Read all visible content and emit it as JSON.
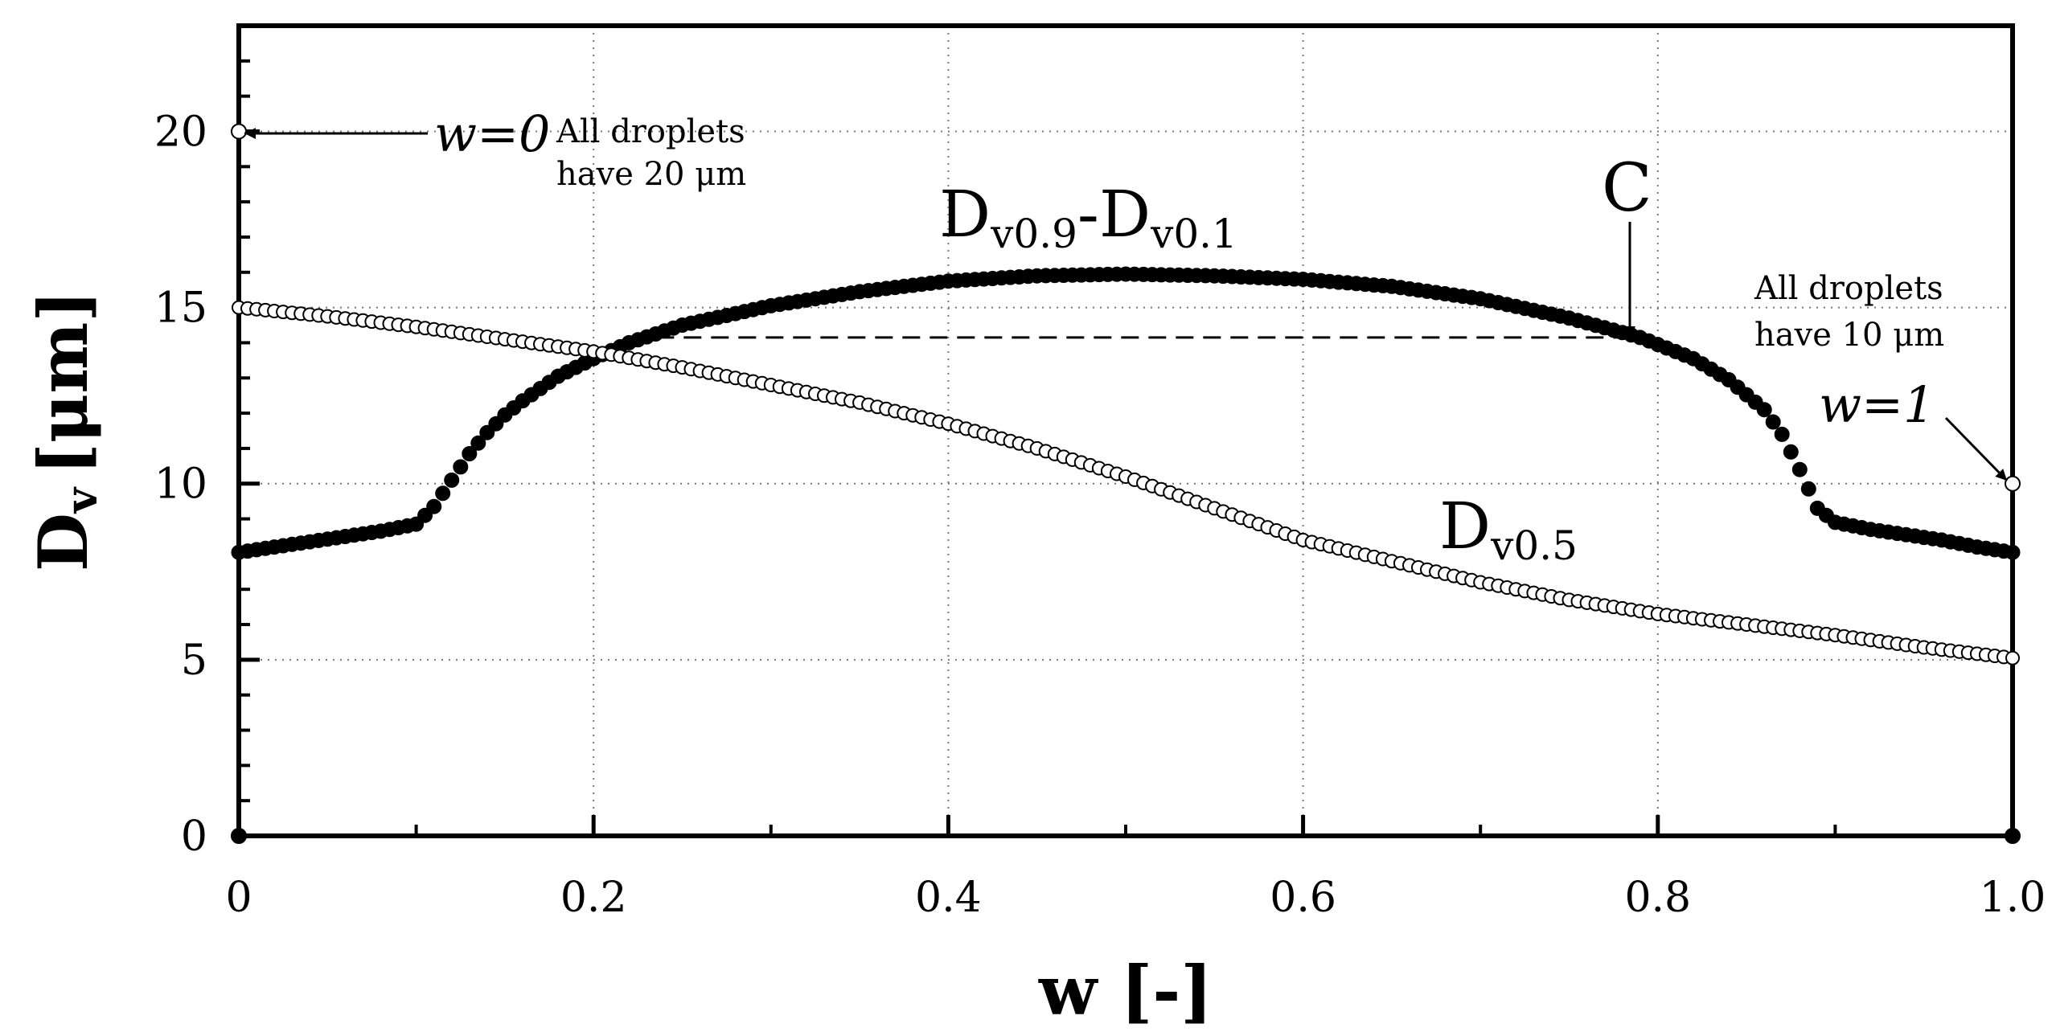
{
  "chart_data": {
    "type": "scatter",
    "xlabel": "w [-]",
    "ylabel_main": "D",
    "ylabel_sub": "v",
    "ylabel_unit": "[μm]",
    "xlim": [
      0,
      1
    ],
    "ylim": [
      0,
      23
    ],
    "x_ticks": [
      0,
      0.2,
      0.4,
      0.6,
      0.8,
      1.0
    ],
    "x_tick_labels": [
      "0",
      "0.2",
      "0.4",
      "0.6",
      "0.8",
      "1.0"
    ],
    "y_ticks": [
      0,
      5,
      10,
      15,
      20
    ],
    "y_tick_labels": [
      "0",
      "5",
      "10",
      "15",
      "20"
    ],
    "grid": "dotted",
    "series": [
      {
        "name": "Dv0.9-Dv0.1",
        "marker": "filled-circle",
        "label_main": "D",
        "label_sub1": "v0.9",
        "label_mid": "-D",
        "label_sub2": "v0.1",
        "points": [
          [
            0.0,
            8.05
          ],
          [
            0.02,
            8.2
          ],
          [
            0.04,
            8.35
          ],
          [
            0.06,
            8.5
          ],
          [
            0.08,
            8.65
          ],
          [
            0.1,
            8.85
          ],
          [
            0.11,
            9.35
          ],
          [
            0.12,
            10.1
          ],
          [
            0.13,
            10.85
          ],
          [
            0.14,
            11.45
          ],
          [
            0.15,
            11.95
          ],
          [
            0.16,
            12.35
          ],
          [
            0.18,
            13.05
          ],
          [
            0.2,
            13.55
          ],
          [
            0.22,
            14.0
          ],
          [
            0.25,
            14.5
          ],
          [
            0.3,
            15.05
          ],
          [
            0.35,
            15.45
          ],
          [
            0.4,
            15.75
          ],
          [
            0.45,
            15.9
          ],
          [
            0.5,
            15.95
          ],
          [
            0.55,
            15.9
          ],
          [
            0.6,
            15.8
          ],
          [
            0.65,
            15.6
          ],
          [
            0.7,
            15.25
          ],
          [
            0.75,
            14.7
          ],
          [
            0.79,
            14.15
          ],
          [
            0.82,
            13.55
          ],
          [
            0.84,
            12.95
          ],
          [
            0.86,
            12.1
          ],
          [
            0.87,
            11.4
          ],
          [
            0.88,
            10.4
          ],
          [
            0.89,
            9.3
          ],
          [
            0.9,
            8.9
          ],
          [
            0.92,
            8.7
          ],
          [
            0.94,
            8.55
          ],
          [
            0.96,
            8.4
          ],
          [
            0.98,
            8.2
          ],
          [
            1.0,
            8.05
          ]
        ]
      },
      {
        "name": "Dv0.5",
        "marker": "open-circle",
        "label_main": "D",
        "label_sub": "v0.5",
        "points": [
          [
            0.0,
            15.0
          ],
          [
            0.05,
            14.75
          ],
          [
            0.1,
            14.45
          ],
          [
            0.15,
            14.1
          ],
          [
            0.2,
            13.75
          ],
          [
            0.25,
            13.3
          ],
          [
            0.3,
            12.8
          ],
          [
            0.35,
            12.3
          ],
          [
            0.4,
            11.7
          ],
          [
            0.45,
            11.0
          ],
          [
            0.5,
            10.2
          ],
          [
            0.55,
            9.3
          ],
          [
            0.6,
            8.4
          ],
          [
            0.65,
            7.8
          ],
          [
            0.7,
            7.2
          ],
          [
            0.75,
            6.7
          ],
          [
            0.8,
            6.3
          ],
          [
            0.85,
            6.0
          ],
          [
            0.9,
            5.7
          ],
          [
            0.95,
            5.35
          ],
          [
            1.0,
            5.05
          ]
        ]
      }
    ],
    "special_points": [
      {
        "name": "w0-point",
        "x": 0,
        "y": 20,
        "marker": "open-circle"
      },
      {
        "name": "w1-point",
        "x": 1,
        "y": 10,
        "marker": "open-circle"
      },
      {
        "name": "origin-point",
        "x": 0,
        "y": 0,
        "marker": "filled-circle"
      },
      {
        "name": "corner-point",
        "x": 1,
        "y": 0,
        "marker": "filled-circle"
      }
    ],
    "c_reference": {
      "x_start": 0.22,
      "x_end": 0.785,
      "y": 14.15,
      "label": "C"
    },
    "annotations": {
      "w0_label": "w=0",
      "w0_note_line1": "All droplets",
      "w0_note_line2": "have 20 μm",
      "w1_label": "w=1",
      "w1_note_line1": "All droplets",
      "w1_note_line2": "have 10 μm"
    }
  }
}
